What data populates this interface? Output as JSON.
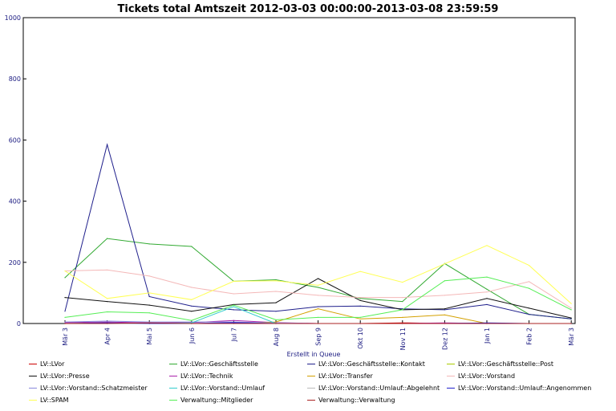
{
  "chart_data": {
    "type": "line",
    "title": "Tickets total Amtszeit 2012-03-03 00:00:00-2013-03-08 23:59:59",
    "xlabel": "Erstellt in Queue",
    "ylabel": "",
    "ylim": [
      0,
      1000
    ],
    "y_ticks": [
      "0",
      "200",
      "400",
      "600",
      "800",
      "1000"
    ],
    "grid": false,
    "legend_position": "bottom",
    "categories": [
      "Mär 3",
      "Apr 4",
      "Mai 5",
      "Jun 6",
      "Jul 7",
      "Aug 8",
      "Sep 9",
      "Okt 10",
      "Nov 11",
      "Dez 12",
      "Jan 1",
      "Feb 2",
      "Mär 3"
    ],
    "series": [
      {
        "name": "LV::LVor",
        "color": "#cc0000",
        "values": [
          0,
          0,
          0,
          0,
          0,
          0,
          0,
          0,
          2,
          0,
          0,
          0,
          0
        ]
      },
      {
        "name": "LV::LVor::Geschäftsstelle",
        "color": "#33aa33",
        "values": [
          150,
          278,
          260,
          252,
          138,
          143,
          118,
          82,
          72,
          196,
          112,
          30,
          15
        ]
      },
      {
        "name": "LV::LVor::Geschäftsstelle::Kontakt",
        "color": "#20208c",
        "values": [
          40,
          585,
          88,
          57,
          45,
          40,
          55,
          57,
          48,
          45,
          62,
          30,
          15
        ]
      },
      {
        "name": "LV::LVor::Geschäftsstelle::Post",
        "color": "#aacc00",
        "values": [
          0,
          2,
          0,
          0,
          0,
          0,
          0,
          0,
          0,
          0,
          0,
          0,
          0
        ]
      },
      {
        "name": "LV::LVor::Presse",
        "color": "#111111",
        "values": [
          85,
          72,
          60,
          40,
          62,
          68,
          147,
          75,
          45,
          48,
          82,
          50,
          18
        ]
      },
      {
        "name": "LV::LVor::Technik",
        "color": "#aa22aa",
        "values": [
          3,
          5,
          2,
          3,
          10,
          3,
          0,
          0,
          0,
          2,
          0,
          0,
          0
        ]
      },
      {
        "name": "LV::LVor::Transfer",
        "color": "#d4a000",
        "values": [
          0,
          0,
          0,
          0,
          0,
          5,
          48,
          15,
          20,
          28,
          0,
          0,
          0
        ]
      },
      {
        "name": "LV::LVor::Vorstand",
        "color": "#f4b8b8",
        "values": [
          172,
          175,
          155,
          118,
          97,
          105,
          92,
          85,
          85,
          92,
          103,
          137,
          50
        ]
      },
      {
        "name": "LV::LVor::Vorstand::Schatzmeister",
        "color": "#8888dd",
        "values": [
          5,
          8,
          5,
          5,
          5,
          2,
          0,
          0,
          0,
          0,
          0,
          0,
          0
        ]
      },
      {
        "name": "LV::LVor::Vorstand::Umlauf",
        "color": "#33cccc",
        "values": [
          0,
          0,
          0,
          2,
          55,
          0,
          0,
          0,
          0,
          0,
          0,
          0,
          0
        ]
      },
      {
        "name": "LV::LVor::Vorstand::Umlauf::Abgelehnt",
        "color": "#bbbbbb",
        "values": [
          0,
          0,
          0,
          0,
          2,
          0,
          0,
          0,
          0,
          0,
          0,
          0,
          0
        ]
      },
      {
        "name": "LV::LVor::Vorstand::Umlauf::Angenommen",
        "color": "#2222cc",
        "values": [
          0,
          2,
          0,
          0,
          3,
          0,
          0,
          0,
          0,
          0,
          2,
          0,
          0
        ]
      },
      {
        "name": "LV::SPAM",
        "color": "#ffff55",
        "values": [
          172,
          82,
          100,
          78,
          138,
          140,
          125,
          170,
          135,
          195,
          255,
          190,
          65
        ]
      },
      {
        "name": "Verwaltung::Mitglieder",
        "color": "#55ee55",
        "values": [
          20,
          38,
          35,
          10,
          60,
          12,
          20,
          20,
          45,
          140,
          152,
          115,
          45
        ]
      },
      {
        "name": "Verwaltung::Verwaltung",
        "color": "#aa2222",
        "values": [
          0,
          0,
          2,
          0,
          0,
          0,
          0,
          0,
          0,
          0,
          0,
          0,
          0
        ]
      }
    ]
  }
}
